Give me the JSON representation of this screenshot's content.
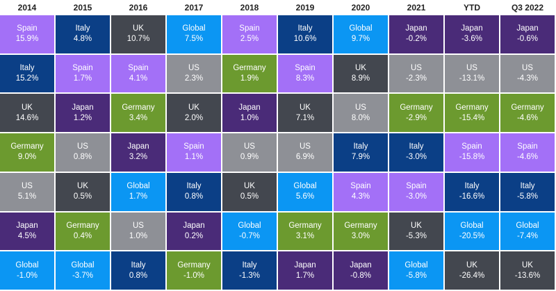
{
  "colors": {
    "Spain": "#a370f7",
    "Italy": "#0b3f86",
    "UK": "#43474f",
    "Global": "#0b96f3",
    "US": "#8e9096",
    "Germany": "#6c9a2f",
    "Japan": "#4a2b78"
  },
  "chart_data": {
    "type": "table",
    "title": "",
    "columns": [
      "2014",
      "2015",
      "2016",
      "2017",
      "2018",
      "2019",
      "2020",
      "2021",
      "YTD",
      "Q3 2022"
    ],
    "cells": [
      [
        {
          "market": "Spain",
          "value": "15.9%"
        },
        {
          "market": "Italy",
          "value": "15.2%"
        },
        {
          "market": "UK",
          "value": "14.6%"
        },
        {
          "market": "Germany",
          "value": "9.0%"
        },
        {
          "market": "US",
          "value": "5.1%"
        },
        {
          "market": "Japan",
          "value": "4.5%"
        },
        {
          "market": "Global",
          "value": "-1.0%"
        }
      ],
      [
        {
          "market": "Italy",
          "value": "4.8%"
        },
        {
          "market": "Spain",
          "value": "1.7%"
        },
        {
          "market": "Japan",
          "value": "1.2%"
        },
        {
          "market": "US",
          "value": "0.8%"
        },
        {
          "market": "UK",
          "value": "0.5%"
        },
        {
          "market": "Germany",
          "value": "0.4%"
        },
        {
          "market": "Global",
          "value": "-3.7%"
        }
      ],
      [
        {
          "market": "UK",
          "value": "10.7%"
        },
        {
          "market": "Spain",
          "value": "4.1%"
        },
        {
          "market": "Germany",
          "value": "3.4%"
        },
        {
          "market": "Japan",
          "value": "3.2%"
        },
        {
          "market": "Global",
          "value": "1.7%"
        },
        {
          "market": "US",
          "value": "1.0%"
        },
        {
          "market": "Italy",
          "value": "0.8%"
        }
      ],
      [
        {
          "market": "Global",
          "value": "7.5%"
        },
        {
          "market": "US",
          "value": "2.3%"
        },
        {
          "market": "UK",
          "value": "2.0%"
        },
        {
          "market": "Spain",
          "value": "1.1%"
        },
        {
          "market": "Italy",
          "value": "0.8%"
        },
        {
          "market": "Japan",
          "value": "0.2%"
        },
        {
          "market": "Germany",
          "value": "-1.0%"
        }
      ],
      [
        {
          "market": "Spain",
          "value": "2.5%"
        },
        {
          "market": "Germany",
          "value": "1.9%"
        },
        {
          "market": "Japan",
          "value": "1.0%"
        },
        {
          "market": "US",
          "value": "0.9%"
        },
        {
          "market": "UK",
          "value": "0.5%"
        },
        {
          "market": "Global",
          "value": "-0.7%"
        },
        {
          "market": "Italy",
          "value": "-1.3%"
        }
      ],
      [
        {
          "market": "Italy",
          "value": "10.6%"
        },
        {
          "market": "Spain",
          "value": "8.3%"
        },
        {
          "market": "UK",
          "value": "7.1%"
        },
        {
          "market": "US",
          "value": "6.9%"
        },
        {
          "market": "Global",
          "value": "5.6%"
        },
        {
          "market": "Germany",
          "value": "3.1%"
        },
        {
          "market": "Japan",
          "value": "1.7%"
        }
      ],
      [
        {
          "market": "Global",
          "value": "9.7%"
        },
        {
          "market": "UK",
          "value": "8.9%"
        },
        {
          "market": "US",
          "value": "8.0%"
        },
        {
          "market": "Italy",
          "value": "7.9%"
        },
        {
          "market": "Spain",
          "value": "4.3%"
        },
        {
          "market": "Germany",
          "value": "3.0%"
        },
        {
          "market": "Japan",
          "value": "-0.8%"
        }
      ],
      [
        {
          "market": "Japan",
          "value": "-0.2%"
        },
        {
          "market": "US",
          "value": "-2.3%"
        },
        {
          "market": "Germany",
          "value": "-2.9%"
        },
        {
          "market": "Italy",
          "value": "-3.0%"
        },
        {
          "market": "Spain",
          "value": "-3.0%"
        },
        {
          "market": "UK",
          "value": "-5.3%"
        },
        {
          "market": "Global",
          "value": "-5.8%"
        }
      ],
      [
        {
          "market": "Japan",
          "value": "-3.6%"
        },
        {
          "market": "US",
          "value": "-13.1%"
        },
        {
          "market": "Germany",
          "value": "-15.4%"
        },
        {
          "market": "Spain",
          "value": "-15.8%"
        },
        {
          "market": "Italy",
          "value": "-16.6%"
        },
        {
          "market": "Global",
          "value": "-20.5%"
        },
        {
          "market": "UK",
          "value": "-26.4%"
        }
      ],
      [
        {
          "market": "Japan",
          "value": "-0.6%"
        },
        {
          "market": "US",
          "value": "-4.3%"
        },
        {
          "market": "Germany",
          "value": "-4.6%"
        },
        {
          "market": "Spain",
          "value": "-4.6%"
        },
        {
          "market": "Italy",
          "value": "-5.8%"
        },
        {
          "market": "Global",
          "value": "-7.4%"
        },
        {
          "market": "UK",
          "value": "-13.6%"
        }
      ]
    ]
  }
}
